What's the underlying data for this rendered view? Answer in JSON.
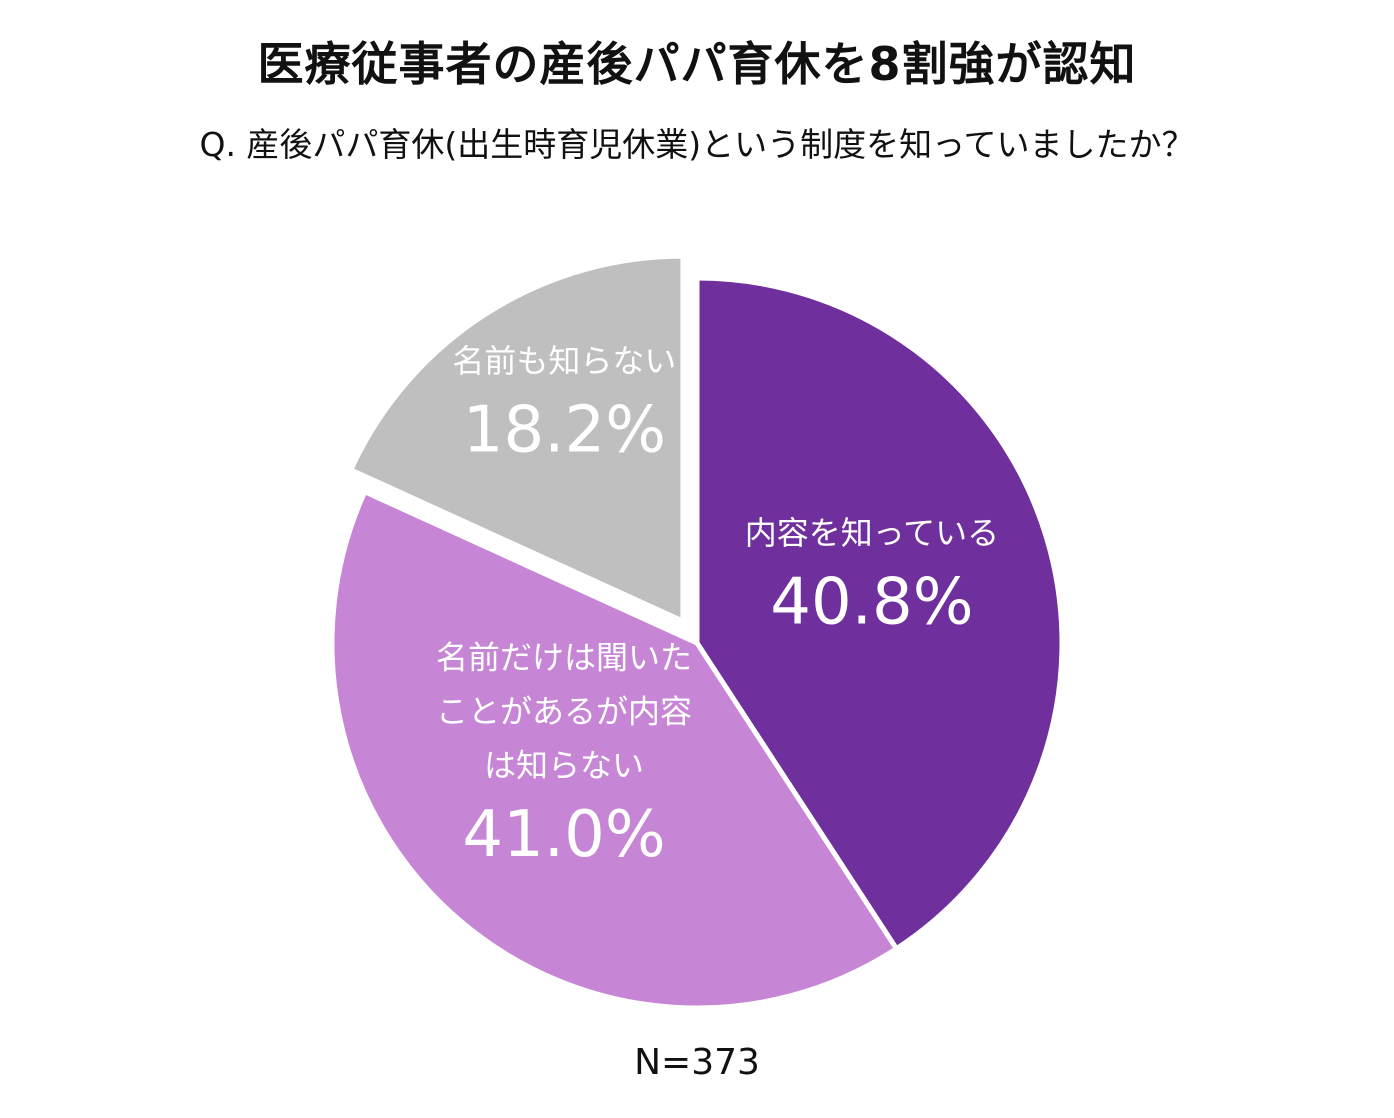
{
  "chart_data": {
    "type": "pie",
    "title": "医療従事者の産後パパ育休を8割強が認知",
    "subtitle": "Q. 産後パパ育休(出生時育児休業)という制度を知っていましたか？",
    "note": "N=373",
    "slices": [
      {
        "label_lines": [
          "内容を知っている"
        ],
        "value": 40.8,
        "value_label": "40.8%",
        "color": "#6f2f9c",
        "exploded": false
      },
      {
        "label_lines": [
          "名前だけは聞いた",
          "ことがあるが内容",
          "は知らない"
        ],
        "value": 41.0,
        "value_label": "41.0%",
        "color": "#c785d6",
        "exploded": false
      },
      {
        "label_lines": [
          "名前も知らない"
        ],
        "value": 18.2,
        "value_label": "18.2%",
        "color": "#bfbfbf",
        "exploded": true
      }
    ],
    "start": "12 o'clock",
    "direction": "clockwise",
    "label_color": "#ffffff"
  }
}
